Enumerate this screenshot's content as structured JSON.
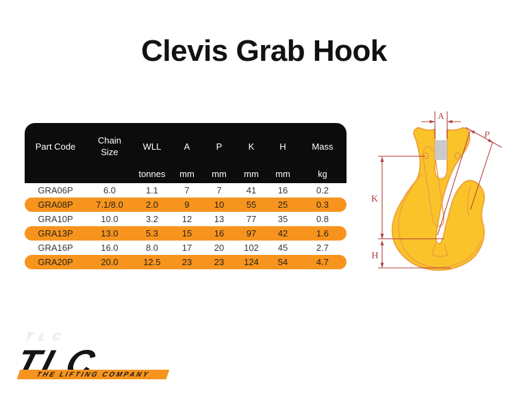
{
  "title": "Clevis Grab Hook",
  "table": {
    "columns": [
      {
        "label": "Part Code",
        "unit": ""
      },
      {
        "label": "Chain Size",
        "unit": ""
      },
      {
        "label": "WLL",
        "unit": "tonnes"
      },
      {
        "label": "A",
        "unit": "mm"
      },
      {
        "label": "P",
        "unit": "mm"
      },
      {
        "label": "K",
        "unit": "mm"
      },
      {
        "label": "H",
        "unit": "mm"
      },
      {
        "label": "Mass",
        "unit": "kg"
      }
    ],
    "rows": [
      [
        "GRA06P",
        "6.0",
        "1.1",
        "7",
        "7",
        "41",
        "16",
        "0.2"
      ],
      [
        "GRA08P",
        "7.1/8.0",
        "2.0",
        "9",
        "10",
        "55",
        "25",
        "0.3"
      ],
      [
        "GRA10P",
        "10.0",
        "3.2",
        "12",
        "13",
        "77",
        "35",
        "0.8"
      ],
      [
        "GRA13P",
        "13.0",
        "5.3",
        "15",
        "16",
        "97",
        "42",
        "1.6"
      ],
      [
        "GRA16P",
        "16.0",
        "8.0",
        "17",
        "20",
        "102",
        "45",
        "2.7"
      ],
      [
        "GRA20P",
        "20.0",
        "12.5",
        "23",
        "23",
        "124",
        "54",
        "4.7"
      ]
    ]
  },
  "diagram": {
    "dim_a": "A",
    "dim_p": "P",
    "dim_k": "K",
    "dim_h": "H"
  },
  "logo": {
    "acronym": "TLC",
    "tagline": "THE LIFTING COMPANY"
  },
  "colors": {
    "accent_orange": "#F7941E",
    "header_black": "#0c0c0c",
    "hook_yellow": "#FBC32A",
    "hook_outline": "#EFA43C",
    "dimension_red": "#B2403E",
    "pin_gray": "#c9c9c9"
  }
}
